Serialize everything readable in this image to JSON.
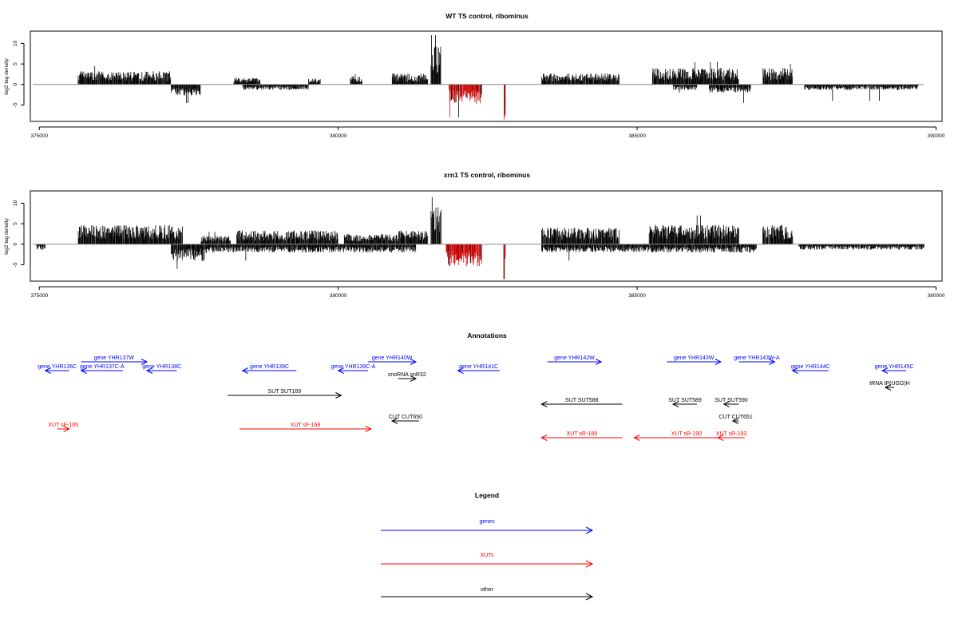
{
  "colors": {
    "gene": "#0000ff",
    "xut": "#ff0000",
    "other": "#000000",
    "neg_highlight": "#cc0000",
    "baseline": "#888888"
  },
  "chart_data": [
    {
      "type": "bar",
      "title": "WT TS control, ribominus",
      "ylabel": "log2 tag density",
      "xlim": [
        374850,
        390100
      ],
      "ylim": [
        -9,
        13
      ],
      "x_ticks": [
        "375000",
        "380000",
        "385000",
        "390000"
      ],
      "x_tick_values": [
        375000,
        380000,
        385000,
        390000
      ],
      "y_ticks": [
        "-5",
        "0",
        "5",
        "10"
      ],
      "y_tick_values": [
        -5,
        0,
        5,
        10
      ],
      "plus_strand_regions": [
        {
          "x": [
            375650,
            377200
          ],
          "mean": 2.4,
          "max": 4.5
        },
        {
          "x": [
            378250,
            378700
          ],
          "mean": 1.2,
          "max": 2.0
        },
        {
          "x": [
            379500,
            379700
          ],
          "mean": 1.0,
          "max": 1.5
        },
        {
          "x": [
            380200,
            380400
          ],
          "mean": 1.5,
          "max": 2.5
        },
        {
          "x": [
            380900,
            381500
          ],
          "mean": 2.0,
          "max": 4.0
        },
        {
          "x": [
            381550,
            381720
          ],
          "mean": 7.0,
          "max": 12.0
        },
        {
          "x": [
            383400,
            384700
          ],
          "mean": 2.0,
          "max": 3.5
        },
        {
          "x": [
            385250,
            386700
          ],
          "mean": 3.0,
          "max": 5.5
        },
        {
          "x": [
            387100,
            387600
          ],
          "mean": 3.0,
          "max": 5.0
        }
      ],
      "minus_strand_regions": [
        {
          "x": [
            377200,
            377700
          ],
          "mean": -2.0,
          "max": -4.5
        },
        {
          "x": [
            378400,
            379500
          ],
          "mean": -1.0,
          "max": -3.0
        },
        {
          "x": [
            381850,
            382400
          ],
          "mean": -3.5,
          "max": -8.0,
          "highlight": true
        },
        {
          "x": [
            382770,
            382800
          ],
          "mean": -7.0,
          "max": -8.5,
          "highlight": true
        },
        {
          "x": [
            385600,
            386000
          ],
          "mean": -1.0,
          "max": -2.0
        },
        {
          "x": [
            386200,
            386900
          ],
          "mean": -1.5,
          "max": -4.5
        },
        {
          "x": [
            387800,
            389700
          ],
          "mean": -1.0,
          "max": -4.0
        }
      ]
    },
    {
      "type": "bar",
      "title": "xrn1 TS control, ribominus",
      "ylabel": "log2 tag density",
      "xlim": [
        374850,
        390100
      ],
      "ylim": [
        -9,
        13
      ],
      "x_ticks": [
        "375000",
        "380000",
        "385000",
        "390000"
      ],
      "x_tick_values": [
        375000,
        380000,
        385000,
        390000
      ],
      "y_ticks": [
        "-5",
        "0",
        "5",
        "10"
      ],
      "y_tick_values": [
        -5,
        0,
        5,
        10
      ],
      "plus_strand_regions": [
        {
          "x": [
            375650,
            377400
          ],
          "mean": 3.5,
          "max": 7.0
        },
        {
          "x": [
            377700,
            378200
          ],
          "mean": 1.5,
          "max": 3.0
        },
        {
          "x": [
            378300,
            380000
          ],
          "mean": 2.5,
          "max": 4.5
        },
        {
          "x": [
            380100,
            381000
          ],
          "mean": 1.8,
          "max": 3.5
        },
        {
          "x": [
            381000,
            381500
          ],
          "mean": 2.5,
          "max": 4.5
        },
        {
          "x": [
            381550,
            381720
          ],
          "mean": 7.0,
          "max": 11.5
        },
        {
          "x": [
            383400,
            384700
          ],
          "mean": 3.0,
          "max": 6.5
        },
        {
          "x": [
            385200,
            386700
          ],
          "mean": 3.5,
          "max": 7.0
        },
        {
          "x": [
            387100,
            387600
          ],
          "mean": 3.5,
          "max": 6.0
        }
      ],
      "minus_strand_regions": [
        {
          "x": [
            374950,
            375100
          ],
          "mean": -1.0,
          "max": -3.0
        },
        {
          "x": [
            377200,
            377800
          ],
          "mean": -3.0,
          "max": -6.0
        },
        {
          "x": [
            377800,
            381300
          ],
          "mean": -1.5,
          "max": -4.0
        },
        {
          "x": [
            381800,
            382400
          ],
          "mean": -4.0,
          "max": -8.5,
          "highlight": true
        },
        {
          "x": [
            382770,
            382800
          ],
          "mean": -7.0,
          "max": -8.5,
          "highlight": true
        },
        {
          "x": [
            383400,
            385200
          ],
          "mean": -1.5,
          "max": -4.0
        },
        {
          "x": [
            385200,
            387000
          ],
          "mean": -1.5,
          "max": -5.0
        },
        {
          "x": [
            387700,
            389800
          ],
          "mean": -1.0,
          "max": -5.0
        }
      ]
    }
  ],
  "annotations": {
    "title": "Annotations",
    "items": [
      {
        "label": "gene YHR136C",
        "start": 375500,
        "end": 375100,
        "kind": "gene"
      },
      {
        "label": "gene YHR137W",
        "start": 375700,
        "end": 376800,
        "kind": "gene"
      },
      {
        "label": "gene YHR137C-A",
        "start": 376400,
        "end": 375700,
        "kind": "gene"
      },
      {
        "label": "gene YHR138C",
        "start": 377300,
        "end": 376800,
        "kind": "gene"
      },
      {
        "label": "gene YHR139C",
        "start": 379300,
        "end": 378400,
        "kind": "gene"
      },
      {
        "label": "gene YHR139C-A",
        "start": 380500,
        "end": 380000,
        "kind": "gene"
      },
      {
        "label": "gene YHR140W",
        "start": 380500,
        "end": 381300,
        "kind": "gene"
      },
      {
        "label": "gene YHR141C",
        "start": 382700,
        "end": 382000,
        "kind": "gene"
      },
      {
        "label": "gene YHR142W",
        "start": 383500,
        "end": 384400,
        "kind": "gene"
      },
      {
        "label": "gene YHR143W",
        "start": 385500,
        "end": 386400,
        "kind": "gene"
      },
      {
        "label": "gene YHR143W-A",
        "start": 386700,
        "end": 387300,
        "kind": "gene"
      },
      {
        "label": "gene YHR144C",
        "start": 388200,
        "end": 387600,
        "kind": "gene"
      },
      {
        "label": "gene YHR145C",
        "start": 389500,
        "end": 389100,
        "kind": "gene"
      },
      {
        "label": "snoRNA snR32",
        "start": 381000,
        "end": 381300,
        "kind": "other"
      },
      {
        "label": "tRNA tP(UGG)H",
        "start": 389300,
        "end": 389150,
        "kind": "other"
      },
      {
        "label": "SUT SUT169",
        "start": 378150,
        "end": 380050,
        "kind": "other"
      },
      {
        "label": "SUT SUT588",
        "start": 384750,
        "end": 383400,
        "kind": "other"
      },
      {
        "label": "SUT SUT589",
        "start": 386000,
        "end": 385600,
        "kind": "other"
      },
      {
        "label": "SUT SUT590",
        "start": 386700,
        "end": 386450,
        "kind": "other"
      },
      {
        "label": "CUT CUT650",
        "start": 381350,
        "end": 380900,
        "kind": "other"
      },
      {
        "label": "CUT CUT651",
        "start": 386700,
        "end": 386600,
        "kind": "other"
      },
      {
        "label": "XUT sF-165",
        "start": 375300,
        "end": 375500,
        "kind": "xut"
      },
      {
        "label": "XUT sF-168",
        "start": 378350,
        "end": 380550,
        "kind": "xut"
      },
      {
        "label": "XUT sR-189",
        "start": 384750,
        "end": 383400,
        "kind": "xut"
      },
      {
        "label": "XUT sR-190",
        "start": 386700,
        "end": 384950,
        "kind": "xut"
      },
      {
        "label": "XUT sR-193",
        "start": 386800,
        "end": 386350,
        "kind": "xut"
      }
    ]
  },
  "legend": {
    "title": "Legend",
    "entries": [
      {
        "label": "genes",
        "kind": "gene"
      },
      {
        "label": "XUTs",
        "kind": "xut"
      },
      {
        "label": "other",
        "kind": "other"
      }
    ]
  }
}
